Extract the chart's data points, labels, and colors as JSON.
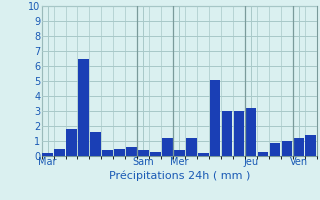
{
  "title": "",
  "xlabel": "Précipitations 24h ( mm )",
  "ylabel": "",
  "background_color": "#daf0f0",
  "bar_color": "#1a3fb5",
  "grid_color": "#a8c8c8",
  "axis_label_color": "#1a5ab5",
  "tick_color": "#1a5ab5",
  "ylim": [
    0,
    10
  ],
  "yticks": [
    0,
    1,
    2,
    3,
    4,
    5,
    6,
    7,
    8,
    9,
    10
  ],
  "bar_values": [
    0.2,
    0.5,
    1.8,
    6.5,
    1.6,
    0.4,
    0.5,
    0.6,
    0.4,
    0.3,
    1.2,
    0.4,
    1.2,
    0.2,
    5.1,
    3.0,
    3.0,
    3.2,
    0.3,
    0.9,
    1.0,
    1.2,
    1.4
  ],
  "day_labels": [
    "Mar",
    "Sam",
    "Mer",
    "Jeu",
    "Ven"
  ],
  "day_positions": [
    0,
    8,
    11,
    17,
    21
  ],
  "vline_positions": [
    7.5,
    10.5,
    16.5,
    20.5
  ],
  "num_bars": 23
}
